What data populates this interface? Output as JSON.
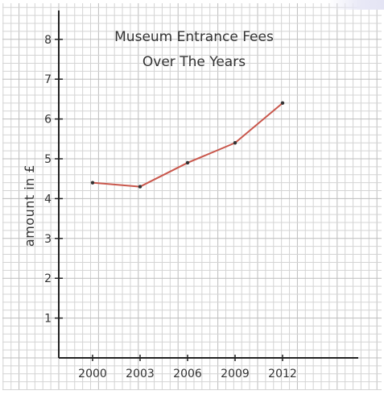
{
  "chart_data": {
    "type": "line",
    "title_lines": [
      "Museum Entrance Fees",
      "Over The Years"
    ],
    "ylabel": "amount in £",
    "xlabel": "",
    "categories": [
      "2000",
      "2003",
      "2006",
      "2009",
      "2012"
    ],
    "series": [
      {
        "values": [
          4.4,
          4.3,
          4.9,
          5.4,
          6.4
        ]
      }
    ],
    "y_ticks": [
      "1",
      "2",
      "3",
      "4",
      "5",
      "6",
      "7",
      "8"
    ],
    "ylim": [
      0,
      8.8
    ],
    "grid": "on",
    "colors": {
      "line": "#c9574c",
      "marker": "#333333",
      "grid_minor": "#d4d4d4",
      "grid_major": "#bdbdbd",
      "axis": "#222222"
    }
  }
}
